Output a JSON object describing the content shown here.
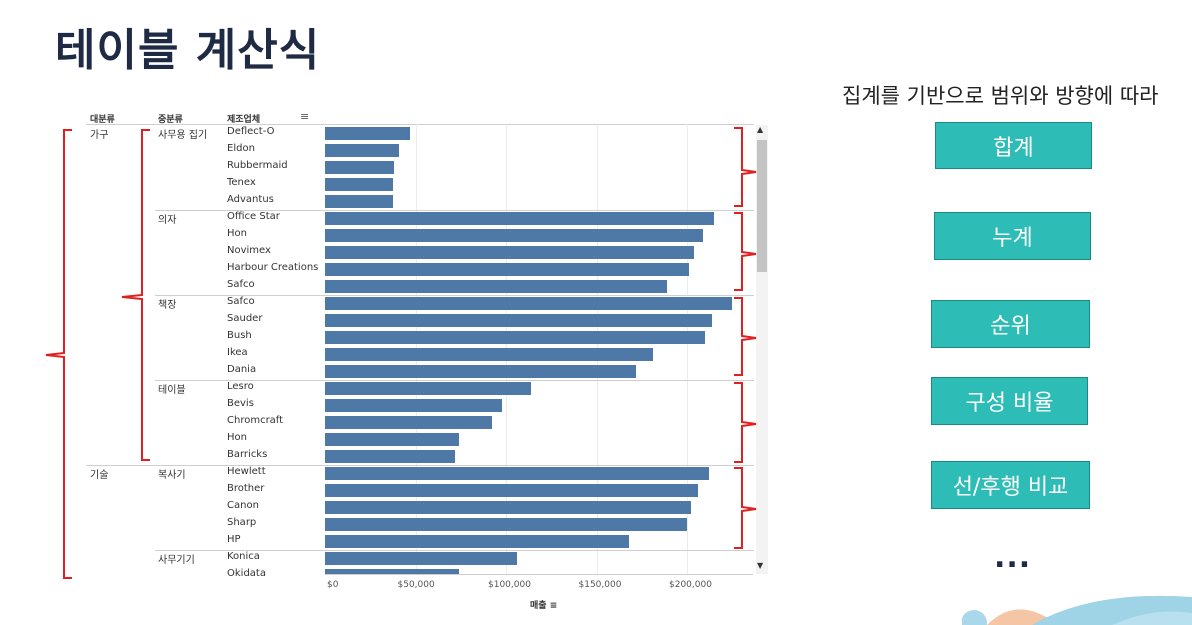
{
  "slide": {
    "title": "테이블 계산식",
    "subtitle": "집계를 기반으로 범위와 방향에 따라",
    "buttons": [
      "합계",
      "누계",
      "순위",
      "구성 비율",
      "선/후행 비교"
    ],
    "more": "..."
  },
  "table": {
    "headers": {
      "category": "대분류",
      "subcategory": "중분류",
      "maker": "제조업체"
    },
    "measure_label": "매출",
    "colors": {
      "bar": "#4e79a7",
      "bracket": "#e02020",
      "button": "#2ebdb6"
    },
    "categories": [
      {
        "name": "가구",
        "groups": [
          {
            "name": "사무용 집기",
            "rows": [
              {
                "maker": "Deflect-O",
                "value": 47000
              },
              {
                "maker": "Eldon",
                "value": 41000
              },
              {
                "maker": "Rubbermaid",
                "value": 38000
              },
              {
                "maker": "Tenex",
                "value": 37500
              },
              {
                "maker": "Advantus",
                "value": 37500
              }
            ]
          },
          {
            "name": "의자",
            "rows": [
              {
                "maker": "Office Star",
                "value": 215000
              },
              {
                "maker": "Hon",
                "value": 209000
              },
              {
                "maker": "Novimex",
                "value": 204000
              },
              {
                "maker": "Harbour Creations",
                "value": 201000
              },
              {
                "maker": "Safco",
                "value": 189000
              }
            ]
          },
          {
            "name": "책장",
            "rows": [
              {
                "maker": "Safco",
                "value": 225000
              },
              {
                "maker": "Sauder",
                "value": 214000
              },
              {
                "maker": "Bush",
                "value": 210000
              },
              {
                "maker": "Ikea",
                "value": 181000
              },
              {
                "maker": "Dania",
                "value": 172000
              }
            ]
          },
          {
            "name": "테이블",
            "rows": [
              {
                "maker": "Lesro",
                "value": 114000
              },
              {
                "maker": "Bevis",
                "value": 98000
              },
              {
                "maker": "Chromcraft",
                "value": 92000
              },
              {
                "maker": "Hon",
                "value": 74000
              },
              {
                "maker": "Barricks",
                "value": 72000
              }
            ]
          }
        ]
      },
      {
        "name": "기술",
        "groups": [
          {
            "name": "복사기",
            "rows": [
              {
                "maker": "Hewlett",
                "value": 212000
              },
              {
                "maker": "Brother",
                "value": 206000
              },
              {
                "maker": "Canon",
                "value": 202000
              },
              {
                "maker": "Sharp",
                "value": 200000
              },
              {
                "maker": "HP",
                "value": 168000
              }
            ]
          },
          {
            "name": "사무기기",
            "rows": [
              {
                "maker": "Konica",
                "value": 106000
              },
              {
                "maker": "Okidata",
                "value": 74000
              }
            ]
          }
        ]
      }
    ],
    "axis": {
      "ticks": [
        "$0",
        "$50,000",
        "$100,000",
        "$150,000",
        "$200,000"
      ],
      "max": 225000
    }
  }
}
